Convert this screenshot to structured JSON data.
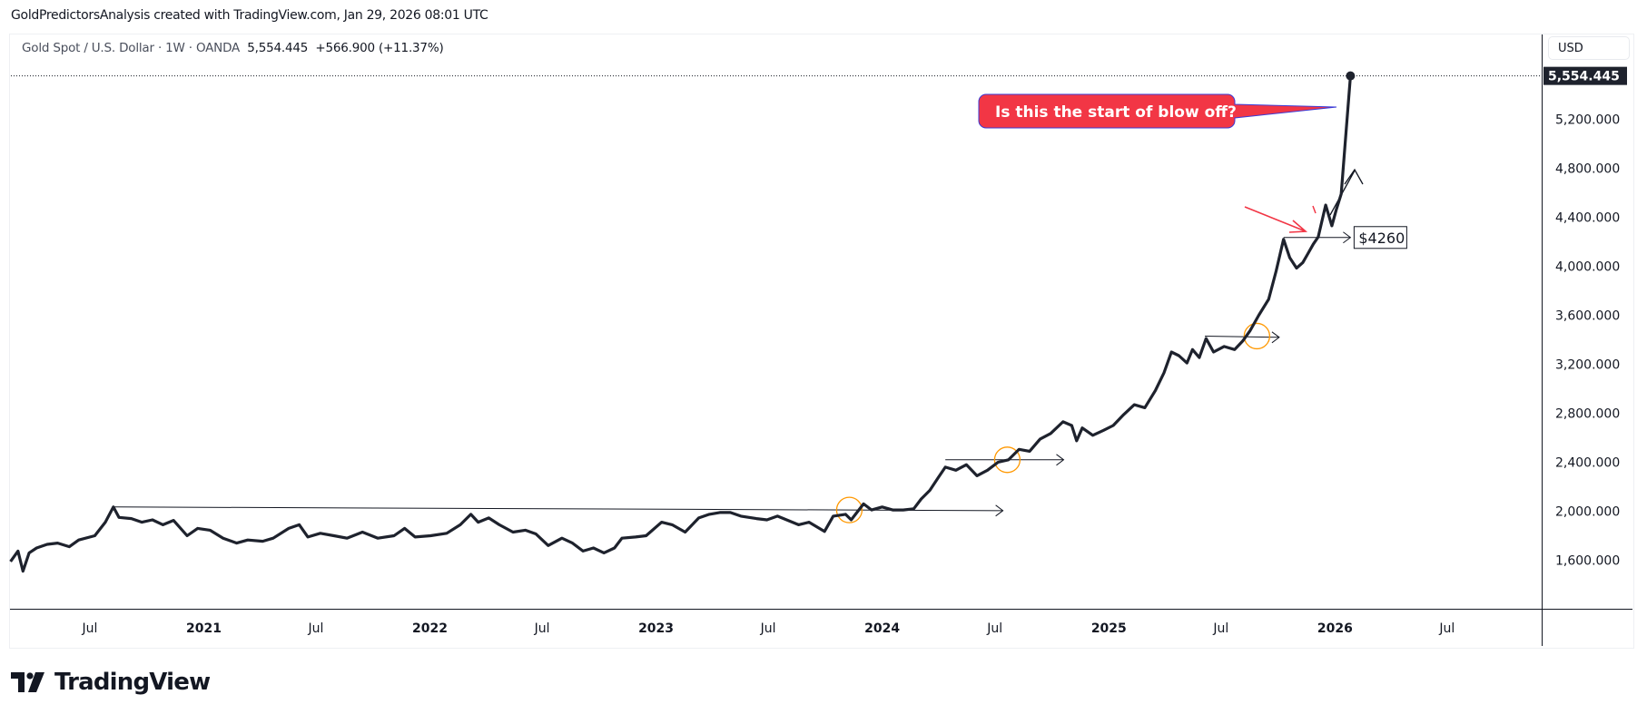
{
  "header": {
    "credit": "GoldPredictorsAnalysis created with TradingView.com, Jan 29, 2026 08:01 UTC"
  },
  "legend": {
    "symbol": "Gold Spot / U.S. Dollar · 1W · OANDA",
    "last": "5,554.445",
    "change": "+566.900 (+11.37%)"
  },
  "axis": {
    "currency_button": "USD"
  },
  "brand": {
    "name": "TradingView"
  },
  "colors": {
    "line": "#1e222d",
    "callout": "#f23645",
    "callout_border": "#2962ff",
    "circle": "#ff9800",
    "red_arrow": "#f23645",
    "last_price_bg": "#1e222d"
  },
  "chart_data": {
    "type": "line",
    "title": "Gold Spot / U.S. Dollar · 1W · OANDA",
    "ylabel": "USD",
    "ylim": [
      1180,
      5870
    ],
    "xlim": [
      "2020-02-20",
      "2026-11-30"
    ],
    "grid": false,
    "x_ticks": [
      "Jul",
      "2021",
      "Jul",
      "2022",
      "Jul",
      "2023",
      "Jul",
      "2024",
      "Jul",
      "2025",
      "Jul",
      "2026",
      "Jul"
    ],
    "x_tick_dates": [
      "2020-07-01",
      "2021-01-01",
      "2021-07-01",
      "2022-01-01",
      "2022-07-01",
      "2023-01-01",
      "2023-07-01",
      "2024-01-01",
      "2024-07-01",
      "2025-01-01",
      "2025-07-01",
      "2026-01-01",
      "2026-07-01"
    ],
    "y_ticks": [
      "5,200.000",
      "4,800.000",
      "4,400.000",
      "4,000.000",
      "3,600.000",
      "3,200.000",
      "2,800.000",
      "2,400.000",
      "2,000.000",
      "1,600.000"
    ],
    "y_tick_values": [
      5200,
      4800,
      4400,
      4000,
      3600,
      3200,
      2800,
      2400,
      2000,
      1600
    ],
    "last_price_label": "5,554.445",
    "last_price": 5554.445,
    "series": [
      {
        "points": [
          [
            "2020-02-24",
            1590
          ],
          [
            "2020-03-07",
            1675
          ],
          [
            "2020-03-15",
            1510
          ],
          [
            "2020-03-25",
            1660
          ],
          [
            "2020-04-06",
            1700
          ],
          [
            "2020-04-23",
            1730
          ],
          [
            "2020-05-10",
            1740
          ],
          [
            "2020-05-29",
            1710
          ],
          [
            "2020-06-13",
            1765
          ],
          [
            "2020-07-09",
            1800
          ],
          [
            "2020-07-26",
            1910
          ],
          [
            "2020-08-08",
            2035
          ],
          [
            "2020-08-17",
            1950
          ],
          [
            "2020-09-06",
            1940
          ],
          [
            "2020-09-23",
            1910
          ],
          [
            "2020-10-10",
            1930
          ],
          [
            "2020-10-27",
            1890
          ],
          [
            "2020-11-13",
            1925
          ],
          [
            "2020-12-05",
            1800
          ],
          [
            "2020-12-22",
            1860
          ],
          [
            "2021-01-11",
            1845
          ],
          [
            "2021-02-01",
            1780
          ],
          [
            "2021-02-23",
            1740
          ],
          [
            "2021-03-13",
            1765
          ],
          [
            "2021-04-06",
            1755
          ],
          [
            "2021-04-23",
            1780
          ],
          [
            "2021-05-18",
            1860
          ],
          [
            "2021-06-04",
            1890
          ],
          [
            "2021-06-18",
            1790
          ],
          [
            "2021-07-08",
            1820
          ],
          [
            "2021-07-30",
            1800
          ],
          [
            "2021-08-20",
            1780
          ],
          [
            "2021-09-14",
            1830
          ],
          [
            "2021-10-09",
            1780
          ],
          [
            "2021-11-04",
            1800
          ],
          [
            "2021-11-21",
            1860
          ],
          [
            "2021-12-08",
            1790
          ],
          [
            "2022-01-02",
            1800
          ],
          [
            "2022-01-28",
            1820
          ],
          [
            "2022-02-19",
            1890
          ],
          [
            "2022-03-08",
            1975
          ],
          [
            "2022-03-20",
            1910
          ],
          [
            "2022-04-06",
            1945
          ],
          [
            "2022-04-23",
            1890
          ],
          [
            "2022-05-15",
            1830
          ],
          [
            "2022-06-04",
            1845
          ],
          [
            "2022-06-21",
            1815
          ],
          [
            "2022-07-11",
            1720
          ],
          [
            "2022-08-02",
            1780
          ],
          [
            "2022-08-19",
            1740
          ],
          [
            "2022-09-05",
            1675
          ],
          [
            "2022-09-22",
            1700
          ],
          [
            "2022-10-09",
            1660
          ],
          [
            "2022-10-26",
            1700
          ],
          [
            "2022-11-07",
            1780
          ],
          [
            "2022-11-29",
            1790
          ],
          [
            "2022-12-16",
            1800
          ],
          [
            "2023-01-10",
            1910
          ],
          [
            "2023-01-27",
            1890
          ],
          [
            "2023-02-17",
            1830
          ],
          [
            "2023-03-11",
            1945
          ],
          [
            "2023-03-28",
            1975
          ],
          [
            "2023-04-14",
            1990
          ],
          [
            "2023-05-01",
            1990
          ],
          [
            "2023-05-18",
            1960
          ],
          [
            "2023-06-12",
            1940
          ],
          [
            "2023-06-29",
            1930
          ],
          [
            "2023-07-16",
            1960
          ],
          [
            "2023-08-02",
            1925
          ],
          [
            "2023-08-19",
            1890
          ],
          [
            "2023-09-05",
            1910
          ],
          [
            "2023-09-30",
            1835
          ],
          [
            "2023-10-14",
            1960
          ],
          [
            "2023-11-03",
            1975
          ],
          [
            "2023-11-12",
            1930
          ],
          [
            "2023-12-02",
            2060
          ],
          [
            "2023-12-15",
            2010
          ],
          [
            "2024-01-01",
            2035
          ],
          [
            "2024-01-18",
            2010
          ],
          [
            "2024-02-04",
            2010
          ],
          [
            "2024-02-21",
            2020
          ],
          [
            "2024-03-04",
            2100
          ],
          [
            "2024-03-18",
            2170
          ],
          [
            "2024-03-31",
            2270
          ],
          [
            "2024-04-12",
            2360
          ],
          [
            "2024-04-29",
            2335
          ],
          [
            "2024-05-16",
            2380
          ],
          [
            "2024-06-02",
            2290
          ],
          [
            "2024-06-19",
            2335
          ],
          [
            "2024-07-06",
            2400
          ],
          [
            "2024-07-23",
            2420
          ],
          [
            "2024-08-09",
            2505
          ],
          [
            "2024-08-26",
            2490
          ],
          [
            "2024-09-12",
            2590
          ],
          [
            "2024-09-29",
            2635
          ],
          [
            "2024-10-19",
            2730
          ],
          [
            "2024-11-02",
            2700
          ],
          [
            "2024-11-10",
            2575
          ],
          [
            "2024-11-19",
            2680
          ],
          [
            "2024-12-06",
            2620
          ],
          [
            "2024-12-23",
            2660
          ],
          [
            "2025-01-08",
            2700
          ],
          [
            "2025-01-25",
            2790
          ],
          [
            "2025-02-11",
            2870
          ],
          [
            "2025-02-28",
            2845
          ],
          [
            "2025-03-17",
            2985
          ],
          [
            "2025-03-31",
            3130
          ],
          [
            "2025-04-12",
            3300
          ],
          [
            "2025-04-24",
            3270
          ],
          [
            "2025-05-07",
            3210
          ],
          [
            "2025-05-16",
            3320
          ],
          [
            "2025-05-27",
            3255
          ],
          [
            "2025-06-07",
            3410
          ],
          [
            "2025-06-19",
            3300
          ],
          [
            "2025-07-06",
            3345
          ],
          [
            "2025-07-23",
            3320
          ],
          [
            "2025-08-05",
            3390
          ],
          [
            "2025-08-17",
            3475
          ],
          [
            "2025-08-31",
            3600
          ],
          [
            "2025-09-16",
            3730
          ],
          [
            "2025-09-28",
            3960
          ],
          [
            "2025-10-10",
            4220
          ],
          [
            "2025-10-20",
            4070
          ],
          [
            "2025-10-31",
            3985
          ],
          [
            "2025-11-10",
            4030
          ],
          [
            "2025-11-18",
            4100
          ],
          [
            "2025-11-27",
            4180
          ],
          [
            "2025-12-05",
            4240
          ],
          [
            "2025-12-17",
            4500
          ],
          [
            "2025-12-27",
            4330
          ],
          [
            "2026-01-03",
            4460
          ],
          [
            "2026-01-11",
            4590
          ],
          [
            "2026-01-17",
            4970
          ],
          [
            "2026-01-26",
            5554.445
          ]
        ]
      }
    ],
    "annotations": {
      "horizontal_rays": [
        {
          "from": [
            "2020-08-08",
            2035
          ],
          "to": [
            "2024-07-14",
            2005
          ]
        },
        {
          "from": [
            "2024-04-12",
            2420
          ],
          "to": [
            "2024-10-20",
            2420
          ]
        },
        {
          "from": [
            "2025-06-05",
            3430
          ],
          "to": [
            "2025-10-03",
            3420
          ]
        },
        {
          "from": [
            "2025-10-10",
            4235
          ],
          "to": [
            "2026-01-26",
            4235
          ]
        }
      ],
      "circles": [
        [
          "2023-11-09",
          2010
        ],
        [
          "2024-07-21",
          2420
        ],
        [
          "2025-08-28",
          3430
        ]
      ],
      "price_label": "$4260",
      "callout": "Is this the start of blow off?"
    }
  }
}
